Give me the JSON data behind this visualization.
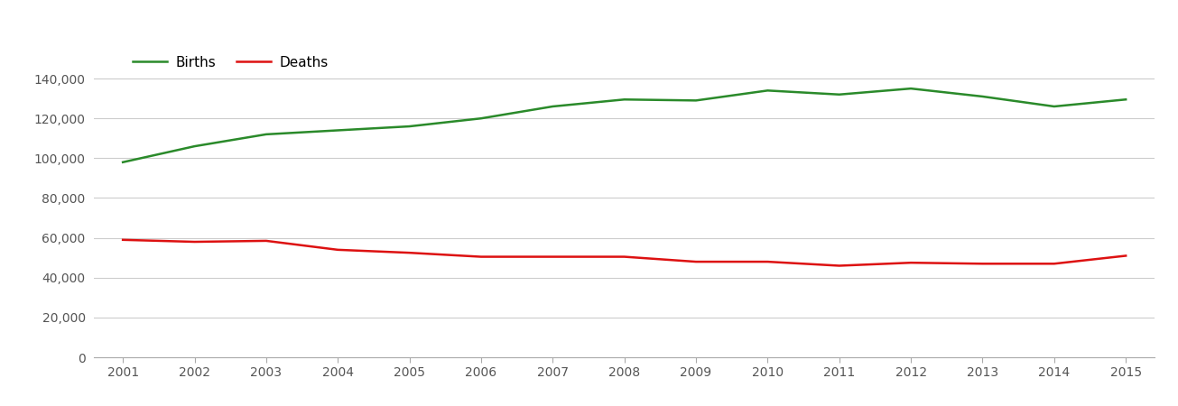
{
  "years": [
    2001,
    2002,
    2003,
    2004,
    2005,
    2006,
    2007,
    2008,
    2009,
    2010,
    2011,
    2012,
    2013,
    2014,
    2015
  ],
  "births": [
    98000,
    106000,
    112000,
    114000,
    116000,
    120000,
    126000,
    129500,
    129000,
    134000,
    132000,
    135000,
    131000,
    126000,
    129500
  ],
  "deaths": [
    59000,
    58000,
    58500,
    54000,
    52500,
    50500,
    50500,
    50500,
    48000,
    48000,
    46000,
    47500,
    47000,
    47000,
    51000
  ],
  "birth_color": "#2a8a2a",
  "death_color": "#dd1111",
  "birth_label": "Births",
  "death_label": "Deaths",
  "ylim": [
    0,
    155000
  ],
  "yticks": [
    0,
    20000,
    40000,
    60000,
    80000,
    100000,
    120000,
    140000
  ],
  "line_width": 1.8,
  "background_color": "#ffffff",
  "grid_color": "#cccccc",
  "legend_fontsize": 11,
  "tick_fontsize": 10,
  "tick_color": "#555555"
}
